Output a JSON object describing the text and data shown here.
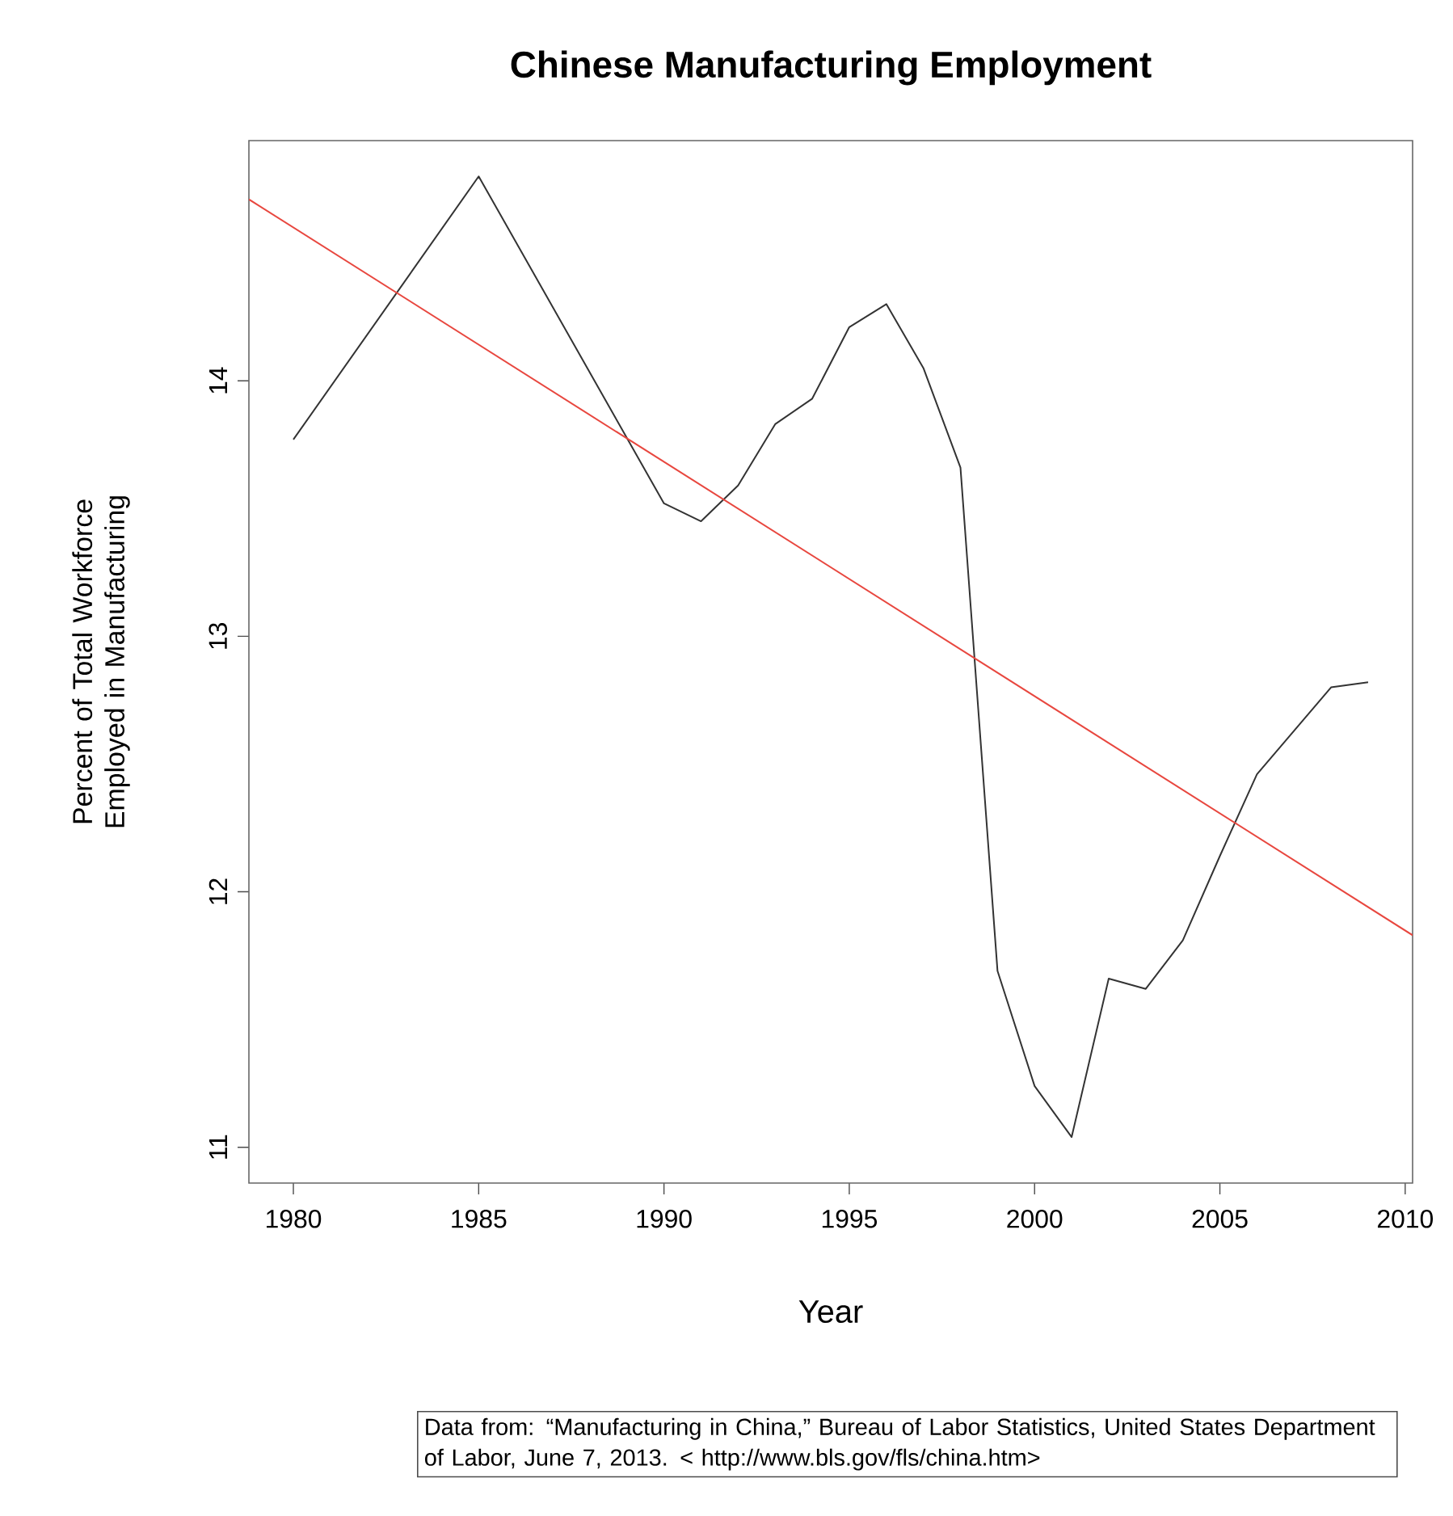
{
  "chart_data": {
    "type": "line",
    "title": "Chinese Manufacturing Employment",
    "xlabel": "Year",
    "ylabel": "Percent of Total Workforce Employed in Manufacturing",
    "x": [
      1980,
      1985,
      1990,
      1991,
      1992,
      1993,
      1994,
      1995,
      1996,
      1997,
      1998,
      1999,
      2000,
      2001,
      2002,
      2003,
      2004,
      2005,
      2006,
      2007,
      2008,
      2009
    ],
    "series": [
      {
        "color": "#333333",
        "values": [
          13.77,
          14.8,
          13.52,
          13.45,
          13.59,
          13.83,
          13.93,
          14.21,
          14.3,
          14.05,
          13.66,
          11.69,
          11.24,
          11.04,
          11.66,
          11.62,
          11.81,
          12.14,
          12.46,
          12.63,
          12.8,
          12.82
        ]
      },
      {
        "type": "line",
        "x": [
          1978.8,
          2010.2
        ],
        "color": "#e8473f",
        "values": [
          14.71,
          11.83
        ]
      }
    ],
    "xlim": [
      1978.8,
      2010.2
    ],
    "ylim": [
      10.86,
      14.94
    ],
    "xticks": [
      1980,
      1985,
      1990,
      1995,
      2000,
      2005,
      2010
    ],
    "yticks": [
      11,
      12,
      13,
      14
    ],
    "annotations": [
      "Data from: “Manufacturing in China,” Bureau of Labor Statistics, United States Department of Labor, June 7, 2013. < http://www.bls.gov/fls/china.htm>"
    ]
  }
}
